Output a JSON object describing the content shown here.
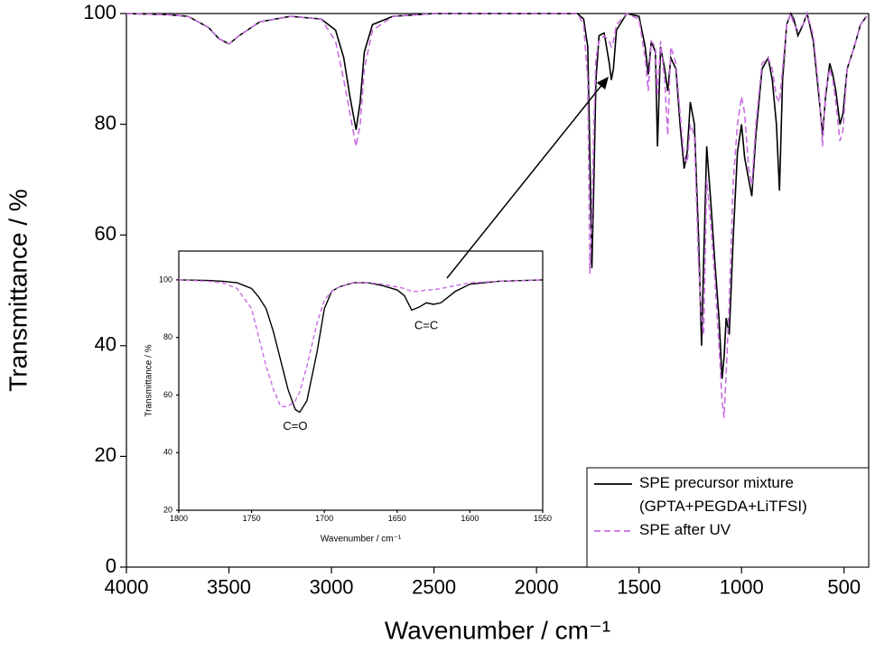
{
  "chart_data": [
    {
      "type": "line",
      "xlabel": "Wavenumber / cm⁻¹",
      "ylabel": "Transmittance / %",
      "xlim": [
        4000,
        380
      ],
      "ylim": [
        0,
        100
      ],
      "xticks": [
        4000,
        3500,
        3000,
        2500,
        2000,
        1500,
        1000,
        500
      ],
      "yticks": [
        0,
        20,
        40,
        60,
        80,
        100
      ],
      "legend": "lower right",
      "x": [
        4000,
        3800,
        3700,
        3600,
        3550,
        3500,
        3450,
        3350,
        3200,
        3050,
        2980,
        2940,
        2910,
        2880,
        2860,
        2840,
        2800,
        2700,
        2500,
        2000,
        1800,
        1770,
        1750,
        1740,
        1730,
        1720,
        1710,
        1695,
        1670,
        1645,
        1635,
        1625,
        1610,
        1560,
        1500,
        1470,
        1455,
        1440,
        1420,
        1410,
        1395,
        1375,
        1360,
        1345,
        1320,
        1300,
        1280,
        1265,
        1250,
        1230,
        1210,
        1195,
        1185,
        1170,
        1150,
        1130,
        1110,
        1095,
        1085,
        1075,
        1060,
        1040,
        1020,
        1000,
        985,
        965,
        950,
        930,
        900,
        870,
        850,
        830,
        815,
        800,
        780,
        760,
        745,
        725,
        700,
        680,
        650,
        620,
        605,
        590,
        570,
        555,
        540,
        520,
        505,
        485,
        450,
        420,
        390
      ],
      "series": [
        {
          "name": "SPE precursor mixture\n(GPTA+PEGDA+LiTFSI)",
          "color": "#000000",
          "dash": false,
          "values": [
            100,
            99.8,
            99.5,
            97.5,
            95.5,
            94.5,
            96,
            98.5,
            99.5,
            99,
            97,
            92,
            85,
            79,
            84,
            93,
            98,
            99.5,
            100,
            100,
            100,
            99,
            94,
            75,
            54,
            70,
            88,
            96,
            96.5,
            91,
            88,
            90,
            97,
            100,
            99.5,
            94,
            89,
            95,
            93,
            76,
            94,
            90,
            86,
            92,
            90,
            80,
            72,
            75,
            84,
            80,
            60,
            40,
            55,
            76,
            66,
            55,
            45,
            34,
            38,
            45,
            42,
            60,
            75,
            80,
            74,
            70,
            67,
            78,
            90,
            92,
            88,
            80,
            68,
            88,
            98,
            100,
            99,
            96,
            98,
            100,
            95,
            84,
            78,
            85,
            91,
            89,
            86,
            80,
            82,
            90,
            94,
            98,
            99.5
          ]
        },
        {
          "name": "SPE after UV",
          "color": "#c86ee0",
          "dash": true,
          "values": [
            100,
            99.8,
            99.5,
            97.5,
            95.5,
            94.5,
            96,
            98.5,
            99.5,
            99,
            95,
            88,
            82,
            76,
            80,
            90,
            97,
            99.5,
            100,
            100,
            100,
            98,
            88,
            53,
            62,
            80,
            92,
            95,
            96,
            95,
            94,
            95,
            98,
            100,
            99,
            92,
            86,
            95,
            94,
            85,
            95,
            88,
            78,
            94,
            91,
            82,
            74,
            73,
            80,
            78,
            55,
            45,
            42,
            70,
            62,
            52,
            40,
            30,
            27,
            35,
            48,
            70,
            80,
            85,
            82,
            72,
            69,
            80,
            91,
            92,
            90,
            85,
            84,
            90,
            98,
            100,
            98,
            97,
            98,
            100,
            96,
            85,
            76,
            86,
            90,
            88,
            84,
            77,
            79,
            90,
            94,
            98,
            99.5
          ]
        }
      ]
    },
    {
      "type": "line",
      "xlabel": "Wavenumber / cm⁻¹",
      "ylabel": "Transmittance / %",
      "xlim": [
        1800,
        1550
      ],
      "ylim": [
        20,
        110
      ],
      "xticks": [
        1800,
        1750,
        1700,
        1650,
        1600,
        1550
      ],
      "yticks": [
        20,
        40,
        60,
        80,
        100
      ],
      "annotations": [
        "C=O",
        "C=C"
      ],
      "x": [
        1800,
        1780,
        1770,
        1760,
        1750,
        1745,
        1740,
        1735,
        1730,
        1725,
        1720,
        1717,
        1712,
        1705,
        1700,
        1695,
        1690,
        1680,
        1670,
        1660,
        1650,
        1645,
        1640,
        1635,
        1630,
        1625,
        1620,
        1610,
        1600,
        1580,
        1550
      ],
      "series": [
        {
          "color": "#000000",
          "dash": false,
          "values": [
            100,
            99.8,
            99.5,
            99,
            97,
            94,
            90,
            82,
            72,
            62,
            55,
            54,
            58,
            75,
            90,
            96,
            97.5,
            99,
            99,
            98,
            96.5,
            94.5,
            89.5,
            90.5,
            92,
            91.5,
            92,
            96,
            98.5,
            99.5,
            100
          ]
        },
        {
          "color": "#c86ee0",
          "dash": true,
          "values": [
            100,
            99.5,
            99,
            97,
            90,
            80,
            70,
            62,
            56,
            56,
            58,
            61,
            70,
            85,
            93,
            96,
            97.5,
            99,
            99,
            98.5,
            97.5,
            97,
            96,
            96,
            96.5,
            96.5,
            97,
            98,
            99,
            99.5,
            100
          ]
        }
      ]
    }
  ]
}
